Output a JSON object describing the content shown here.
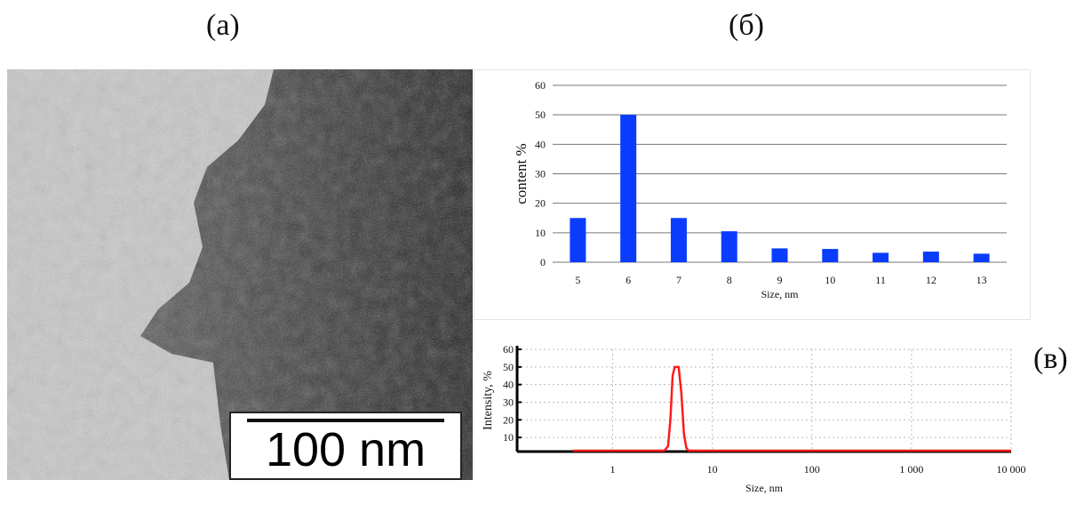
{
  "labels": {
    "a": "(a)",
    "b": "(б)",
    "c": "(в)"
  },
  "tem_image": {
    "scale_bar_label": "100 nm"
  },
  "chart_data": [
    {
      "type": "bar",
      "categories": [
        "5",
        "6",
        "7",
        "8",
        "9",
        "10",
        "11",
        "12",
        "13"
      ],
      "values": [
        15,
        50,
        15,
        10.5,
        4.7,
        4.5,
        3.2,
        3.6,
        2.9
      ],
      "xlabel": "Size, nm",
      "ylabel": "content %",
      "ylim": [
        0,
        60
      ],
      "yticks": [
        "0",
        "10",
        "20",
        "30",
        "40",
        "50",
        "60"
      ],
      "grid": true,
      "color": "#0a3cff"
    },
    {
      "type": "line",
      "xscale": "log",
      "xlabel": "Size, nm",
      "ylabel": "Intensity, %",
      "xlim": [
        0.11,
        10000
      ],
      "ylim": [
        2,
        60
      ],
      "xticks": [
        {
          "v": 1,
          "label": "1"
        },
        {
          "v": 10,
          "label": "10"
        },
        {
          "v": 100,
          "label": "100"
        },
        {
          "v": 1000,
          "label": "1 000"
        },
        {
          "v": 10000,
          "label": "10 000"
        }
      ],
      "yticks": [
        "10",
        "20",
        "30",
        "40",
        "50",
        "60"
      ],
      "grid": true,
      "color": "#ff1a1a",
      "x": [
        0.4,
        3.3,
        3.6,
        3.8,
        4.0,
        4.2,
        4.6,
        4.9,
        5.2,
        5.5,
        5.8,
        10000
      ],
      "y": [
        2.5,
        2.5,
        5,
        20,
        45,
        50,
        50,
        35,
        12,
        4,
        2.5,
        2.5
      ]
    }
  ]
}
